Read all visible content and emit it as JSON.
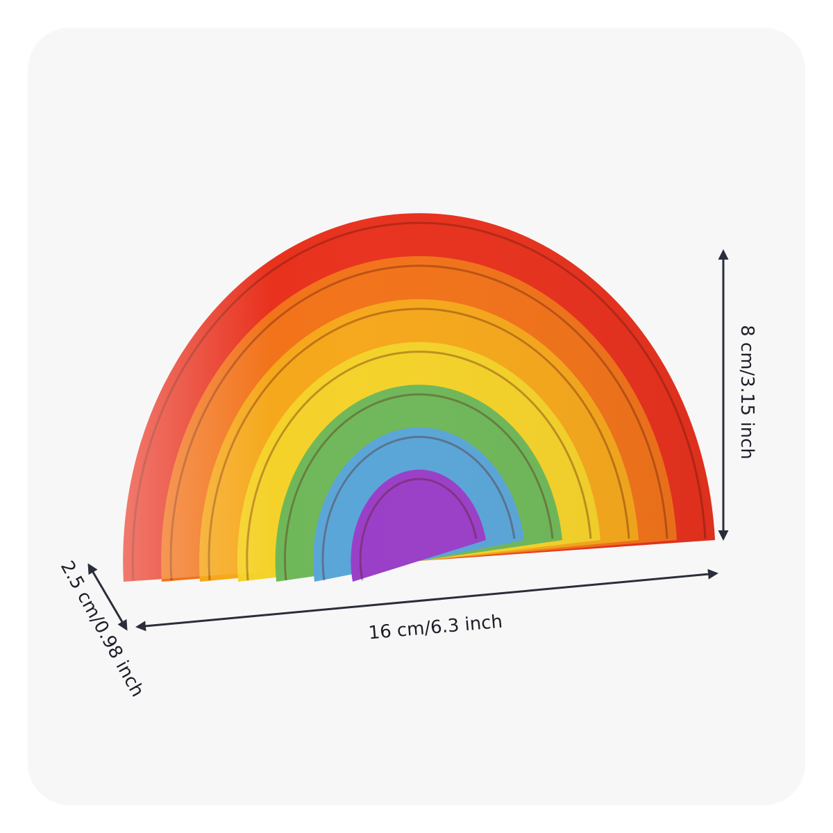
{
  "dimensions": {
    "width": "16 cm/6.3 inch",
    "height": "8 cm/3.15 inch",
    "depth": "2.5 cm/0.98 inch"
  }
}
